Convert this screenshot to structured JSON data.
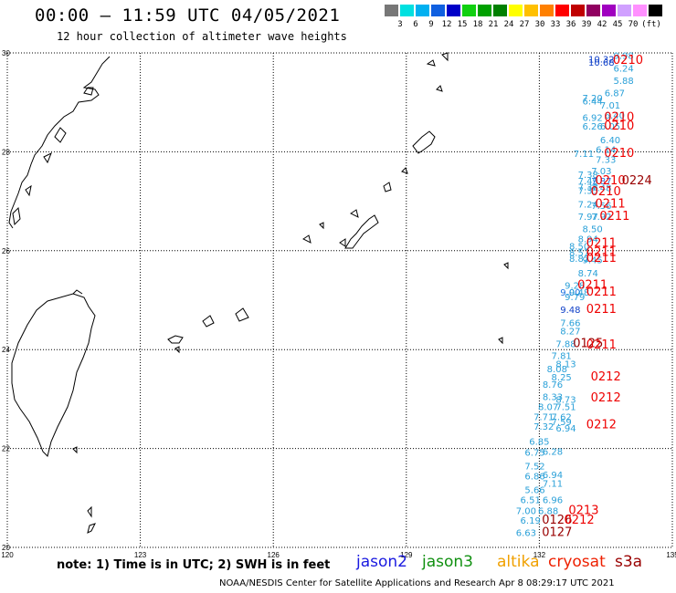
{
  "header": {
    "title": "00:00 – 11:59 UTC 04/05/2021",
    "subtitle": "12 hour collection of altimeter wave heights"
  },
  "scale": {
    "unit": "(ft)",
    "labels": [
      "3",
      "6",
      "9",
      "12",
      "15",
      "18",
      "21",
      "24",
      "27",
      "30",
      "33",
      "36",
      "39",
      "42",
      "45",
      "70"
    ],
    "colors": [
      "#777777",
      "#00e0e0",
      "#00b0f0",
      "#1060e0",
      "#0000c8",
      "#10d010",
      "#00a000",
      "#008000",
      "#ffff00",
      "#ffc000",
      "#ff8000",
      "#ff0000",
      "#c00000",
      "#900060",
      "#a000c0",
      "#d0a0ff",
      "#ff90ff",
      "#000000"
    ]
  },
  "map": {
    "lon_range": [
      120,
      135
    ],
    "lat_range": [
      20,
      30
    ],
    "lon_ticks": [
      "120",
      "123",
      "126",
      "129",
      "132",
      "135"
    ],
    "lat_ticks": [
      "30",
      "28",
      "26",
      "24",
      "22",
      "20"
    ],
    "tick_lon_values": [
      120,
      123,
      126,
      129,
      132,
      135
    ],
    "tick_lat_values": [
      30,
      28,
      26,
      24,
      22,
      20
    ]
  },
  "observations": [
    {
      "lon": 133.9,
      "lat": 29.95,
      "v": "9.98",
      "c": "#2aa0d8"
    },
    {
      "lon": 133.4,
      "lat": 29.88,
      "v": "10.32",
      "c": "#1040c8"
    },
    {
      "lon": 133.4,
      "lat": 29.82,
      "v": "10.68",
      "c": "#1040c8"
    },
    {
      "lon": 134.0,
      "lat": 29.85,
      "v": "0210",
      "c": "#ee0000",
      "t": 1
    },
    {
      "lon": 133.9,
      "lat": 29.7,
      "v": "6.24",
      "c": "#2aa0d8"
    },
    {
      "lon": 133.9,
      "lat": 29.45,
      "v": "5.88",
      "c": "#2aa0d8"
    },
    {
      "lon": 133.7,
      "lat": 29.2,
      "v": "6.87",
      "c": "#2aa0d8"
    },
    {
      "lon": 133.2,
      "lat": 29.1,
      "v": "7.20",
      "c": "#2aa0d8"
    },
    {
      "lon": 133.2,
      "lat": 29.03,
      "v": "6.44",
      "c": "#2aa0d8"
    },
    {
      "lon": 133.6,
      "lat": 28.95,
      "v": "7.01",
      "c": "#2aa0d8"
    },
    {
      "lon": 133.7,
      "lat": 28.75,
      "v": "6.40",
      "c": "#2aa0d8"
    },
    {
      "lon": 133.2,
      "lat": 28.7,
      "v": "6.92",
      "c": "#2aa0d8"
    },
    {
      "lon": 133.8,
      "lat": 28.7,
      "v": "0210",
      "c": "#ee0000",
      "t": 1
    },
    {
      "lon": 133.2,
      "lat": 28.52,
      "v": "6.26",
      "c": "#2aa0d8"
    },
    {
      "lon": 133.6,
      "lat": 28.52,
      "v": "6.05",
      "c": "#2aa0d8"
    },
    {
      "lon": 133.8,
      "lat": 28.52,
      "v": "0210",
      "c": "#ee0000",
      "t": 1
    },
    {
      "lon": 133.6,
      "lat": 28.25,
      "v": "6.40",
      "c": "#2aa0d8"
    },
    {
      "lon": 133.5,
      "lat": 28.05,
      "v": "6.14",
      "c": "#2aa0d8"
    },
    {
      "lon": 133.0,
      "lat": 27.97,
      "v": "7.11",
      "c": "#2aa0d8"
    },
    {
      "lon": 133.8,
      "lat": 27.97,
      "v": "0210",
      "c": "#ee0000",
      "t": 1
    },
    {
      "lon": 133.5,
      "lat": 27.85,
      "v": "7.33",
      "c": "#2aa0d8"
    },
    {
      "lon": 133.4,
      "lat": 27.62,
      "v": "7.03",
      "c": "#2aa0d8"
    },
    {
      "lon": 133.1,
      "lat": 27.55,
      "v": "7.38",
      "c": "#2aa0d8"
    },
    {
      "lon": 133.1,
      "lat": 27.42,
      "v": "7.49",
      "c": "#2aa0d8"
    },
    {
      "lon": 133.4,
      "lat": 27.42,
      "v": "7.87",
      "c": "#1a70e0"
    },
    {
      "lon": 133.1,
      "lat": 27.3,
      "v": "7.38",
      "c": "#2aa0d8"
    },
    {
      "lon": 133.4,
      "lat": 27.28,
      "v": "7.48",
      "c": "#2aa0d8"
    },
    {
      "lon": 133.6,
      "lat": 27.42,
      "v": "0210",
      "c": "#ee0000",
      "t": 1
    },
    {
      "lon": 134.2,
      "lat": 27.42,
      "v": "0224",
      "c": "#990000",
      "t": 1
    },
    {
      "lon": 133.1,
      "lat": 27.22,
      "v": "7.35",
      "c": "#2aa0d8"
    },
    {
      "lon": 133.5,
      "lat": 27.2,
      "v": "0210",
      "c": "#ee0000",
      "t": 1
    },
    {
      "lon": 133.1,
      "lat": 26.95,
      "v": "7.24",
      "c": "#2aa0d8"
    },
    {
      "lon": 133.4,
      "lat": 26.92,
      "v": "7.56",
      "c": "#2aa0d8"
    },
    {
      "lon": 133.6,
      "lat": 26.95,
      "v": "0211",
      "c": "#ee0000",
      "t": 1
    },
    {
      "lon": 133.1,
      "lat": 26.7,
      "v": "7.97",
      "c": "#2aa0d8"
    },
    {
      "lon": 133.4,
      "lat": 26.7,
      "v": "7.92",
      "c": "#2aa0d8"
    },
    {
      "lon": 133.7,
      "lat": 26.7,
      "v": "0211",
      "c": "#ee0000",
      "t": 1
    },
    {
      "lon": 133.2,
      "lat": 26.45,
      "v": "8.50",
      "c": "#2aa0d8"
    },
    {
      "lon": 133.1,
      "lat": 26.25,
      "v": "8.94",
      "c": "#2aa0d8"
    },
    {
      "lon": 132.9,
      "lat": 26.1,
      "v": "8.50",
      "c": "#2aa0d8"
    },
    {
      "lon": 133.4,
      "lat": 26.15,
      "v": "0211",
      "c": "#ee0000",
      "t": 1
    },
    {
      "lon": 132.9,
      "lat": 25.97,
      "v": "8.57",
      "c": "#2aa0d8"
    },
    {
      "lon": 133.4,
      "lat": 25.97,
      "v": "0211",
      "c": "#ee0000",
      "t": 1
    },
    {
      "lon": 132.9,
      "lat": 25.85,
      "v": "8.82",
      "c": "#2aa0d8"
    },
    {
      "lon": 133.2,
      "lat": 25.82,
      "v": "9.45",
      "c": "#2aa0d8"
    },
    {
      "lon": 133.4,
      "lat": 25.85,
      "v": "0211",
      "c": "#ee0000",
      "t": 1
    },
    {
      "lon": 133.1,
      "lat": 25.55,
      "v": "8.74",
      "c": "#2aa0d8"
    },
    {
      "lon": 132.8,
      "lat": 25.3,
      "v": "9.28",
      "c": "#2aa0d8"
    },
    {
      "lon": 133.2,
      "lat": 25.3,
      "v": "0211",
      "c": "#ee0000",
      "t": 1
    },
    {
      "lon": 132.7,
      "lat": 25.17,
      "v": "9.00",
      "c": "#1a70e0"
    },
    {
      "lon": 132.9,
      "lat": 25.17,
      "v": "9.48",
      "c": "#2aa0d8"
    },
    {
      "lon": 133.4,
      "lat": 25.17,
      "v": "0211",
      "c": "#ee0000",
      "t": 1
    },
    {
      "lon": 132.8,
      "lat": 25.07,
      "v": "9.79",
      "c": "#2aa0d8"
    },
    {
      "lon": 132.7,
      "lat": 24.82,
      "v": "9.48",
      "c": "#1040c8"
    },
    {
      "lon": 133.4,
      "lat": 24.82,
      "v": "0211",
      "c": "#ee0000",
      "t": 1
    },
    {
      "lon": 132.7,
      "lat": 24.55,
      "v": "7.66",
      "c": "#2aa0d8"
    },
    {
      "lon": 132.7,
      "lat": 24.38,
      "v": "8.27",
      "c": "#2aa0d8"
    },
    {
      "lon": 132.6,
      "lat": 24.12,
      "v": "7.88",
      "c": "#2aa0d8"
    },
    {
      "lon": 133.1,
      "lat": 24.12,
      "v": "0125",
      "c": "#990000",
      "t": 1
    },
    {
      "lon": 133.4,
      "lat": 24.1,
      "v": "0211",
      "c": "#ee0000",
      "t": 1
    },
    {
      "lon": 132.5,
      "lat": 23.88,
      "v": "7.81",
      "c": "#2aa0d8"
    },
    {
      "lon": 132.6,
      "lat": 23.72,
      "v": "8.13",
      "c": "#2aa0d8"
    },
    {
      "lon": 132.4,
      "lat": 23.62,
      "v": "8.08",
      "c": "#2aa0d8"
    },
    {
      "lon": 132.5,
      "lat": 23.45,
      "v": "8.25",
      "c": "#2aa0d8"
    },
    {
      "lon": 133.5,
      "lat": 23.45,
      "v": "0212",
      "c": "#ee0000",
      "t": 1
    },
    {
      "lon": 132.3,
      "lat": 23.3,
      "v": "8.76",
      "c": "#2aa0d8"
    },
    {
      "lon": 132.3,
      "lat": 23.05,
      "v": "8.33",
      "c": "#2aa0d8"
    },
    {
      "lon": 132.6,
      "lat": 23.0,
      "v": "8.73",
      "c": "#2aa0d8"
    },
    {
      "lon": 133.5,
      "lat": 23.03,
      "v": "0212",
      "c": "#ee0000",
      "t": 1
    },
    {
      "lon": 132.2,
      "lat": 22.85,
      "v": "8.07",
      "c": "#2aa0d8"
    },
    {
      "lon": 132.6,
      "lat": 22.85,
      "v": "7.51",
      "c": "#2aa0d8"
    },
    {
      "lon": 132.1,
      "lat": 22.65,
      "v": "7.71",
      "c": "#2aa0d8"
    },
    {
      "lon": 132.5,
      "lat": 22.65,
      "v": "7.62",
      "c": "#2aa0d8"
    },
    {
      "lon": 132.5,
      "lat": 22.55,
      "v": "7.59",
      "c": "#2aa0d8"
    },
    {
      "lon": 132.1,
      "lat": 22.45,
      "v": "7.32",
      "c": "#2aa0d8"
    },
    {
      "lon": 132.6,
      "lat": 22.42,
      "v": "6.94",
      "c": "#2aa0d8"
    },
    {
      "lon": 133.4,
      "lat": 22.48,
      "v": "0212",
      "c": "#ee0000",
      "t": 1
    },
    {
      "lon": 132.0,
      "lat": 22.15,
      "v": "6.85",
      "c": "#2aa0d8"
    },
    {
      "lon": 131.9,
      "lat": 21.93,
      "v": "6.75",
      "c": "#2aa0d8"
    },
    {
      "lon": 132.3,
      "lat": 21.95,
      "v": "6.28",
      "c": "#2aa0d8"
    },
    {
      "lon": 131.9,
      "lat": 21.65,
      "v": "7.52",
      "c": "#2aa0d8"
    },
    {
      "lon": 131.9,
      "lat": 21.45,
      "v": "6.86",
      "c": "#2aa0d8"
    },
    {
      "lon": 132.3,
      "lat": 21.48,
      "v": "6.94",
      "c": "#2aa0d8"
    },
    {
      "lon": 132.3,
      "lat": 21.3,
      "v": "7.11",
      "c": "#2aa0d8"
    },
    {
      "lon": 131.9,
      "lat": 21.17,
      "v": "5.66",
      "c": "#2aa0d8"
    },
    {
      "lon": 131.8,
      "lat": 20.97,
      "v": "6.51",
      "c": "#2aa0d8"
    },
    {
      "lon": 132.3,
      "lat": 20.97,
      "v": "6.96",
      "c": "#2aa0d8"
    },
    {
      "lon": 131.7,
      "lat": 20.75,
      "v": "7.00",
      "c": "#2aa0d8"
    },
    {
      "lon": 132.2,
      "lat": 20.75,
      "v": "6.88",
      "c": "#2aa0d8"
    },
    {
      "lon": 133.0,
      "lat": 20.75,
      "v": "0213",
      "c": "#ee0000",
      "t": 1
    },
    {
      "lon": 131.8,
      "lat": 20.55,
      "v": "6.19",
      "c": "#2aa0d8"
    },
    {
      "lon": 132.4,
      "lat": 20.55,
      "v": "0126",
      "c": "#990000",
      "t": 1
    },
    {
      "lon": 132.9,
      "lat": 20.55,
      "v": "0212",
      "c": "#ee0000",
      "t": 1
    },
    {
      "lon": 131.7,
      "lat": 20.3,
      "v": "6.63",
      "c": "#2aa0d8"
    },
    {
      "lon": 132.4,
      "lat": 20.3,
      "v": "0127",
      "c": "#990000",
      "t": 1
    }
  ],
  "footer": {
    "note": "note: 1) Time is in UTC; 2) SWH is in feet",
    "satellites": [
      {
        "name": "jason2",
        "color": "#1a1ae0"
      },
      {
        "name": "jason3",
        "color": "#109010"
      },
      {
        "name": "altika",
        "color": "#f0a000"
      },
      {
        "name": "cryosat",
        "color": "#ee2000"
      },
      {
        "name": "s3a",
        "color": "#990000"
      }
    ],
    "credit": "NOAA/NESDIS Center for Satellite Applications and Research   Apr  8 08:29:17 UTC 2021"
  }
}
